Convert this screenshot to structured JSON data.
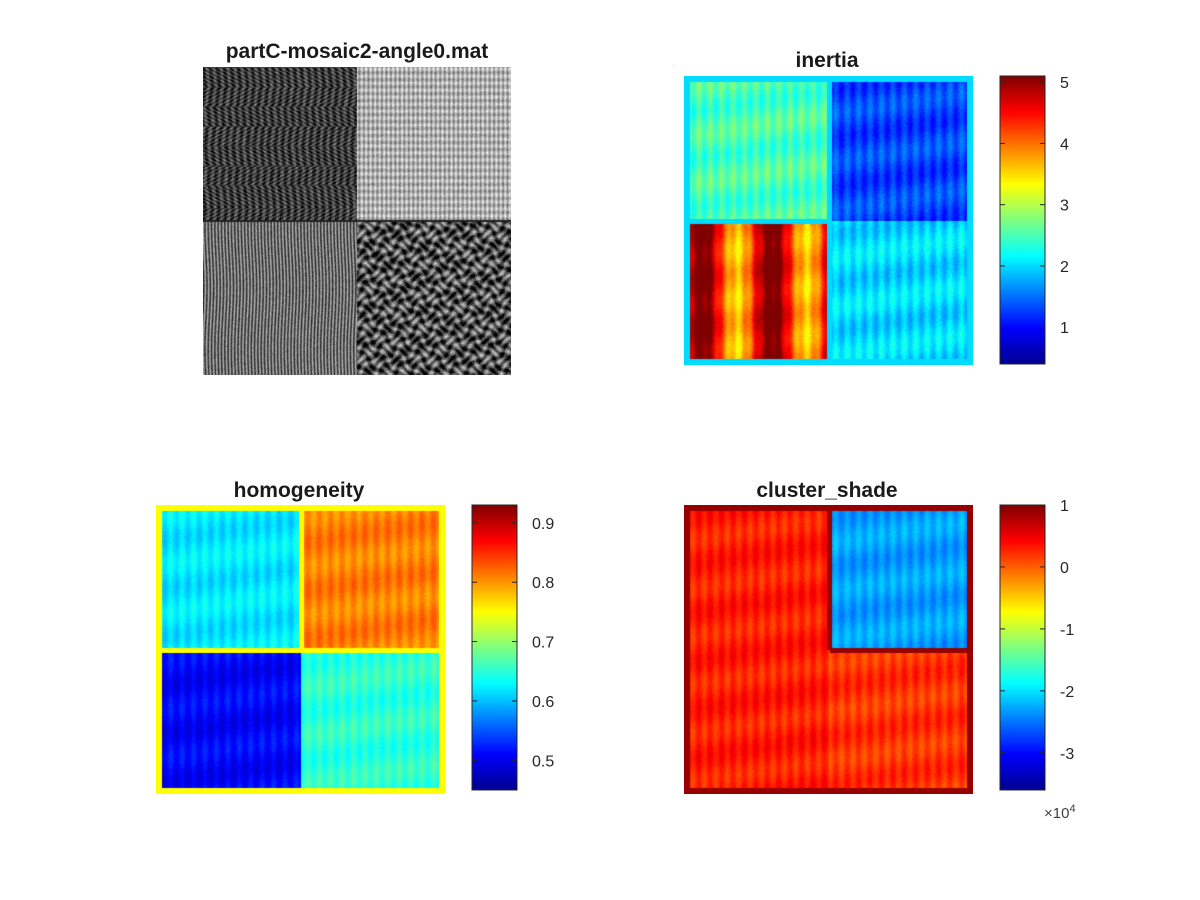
{
  "figure": {
    "panels": [
      {
        "id": "image",
        "title": "partC-mosaic2-angle0.mat",
        "kind": "grayscale-image"
      },
      {
        "id": "inertia",
        "title": "inertia",
        "kind": "heatmap"
      },
      {
        "id": "homogeneity",
        "title": "homogeneity",
        "kind": "heatmap"
      },
      {
        "id": "cluster_shade",
        "title": "cluster_shade",
        "kind": "heatmap"
      }
    ],
    "colormap": "jet",
    "cluster_shade_exponent": {
      "prefix": "×10",
      "power": "4"
    }
  },
  "chart_data": [
    {
      "type": "heatmap",
      "title": "partC-mosaic2-angle0.mat",
      "colormap": "gray",
      "quadrants": {
        "top_left": "woven herringbone (dark)",
        "top_right": "woven fabric (light)",
        "bottom_left": "vertical streaks",
        "bottom_right": "pebble texture"
      }
    },
    {
      "type": "heatmap",
      "title": "inertia",
      "colorbar": {
        "ticks": [
          1,
          2,
          3,
          4,
          5
        ],
        "range": [
          0.4,
          5.1
        ]
      },
      "quadrant_values": {
        "top_left": 2.5,
        "top_right": 1.3,
        "bottom_left": 4.4,
        "bottom_right": 2.0,
        "border": 2.0
      }
    },
    {
      "type": "heatmap",
      "title": "homogeneity",
      "colorbar": {
        "ticks": [
          0.5,
          0.6,
          0.7,
          0.8,
          0.9
        ],
        "range": [
          0.45,
          0.93
        ]
      },
      "quadrant_values": {
        "top_left": 0.62,
        "top_right": 0.81,
        "bottom_left": 0.51,
        "bottom_right": 0.65,
        "border": 0.75
      }
    },
    {
      "type": "heatmap",
      "title": "cluster_shade",
      "colorbar": {
        "ticks": [
          -3,
          -2,
          -1,
          0,
          1
        ],
        "range": [
          -3.6,
          1.0
        ],
        "multiplier": 10000
      },
      "quadrant_values": {
        "top_left": 0.3,
        "top_right": -2.3,
        "bottom_left": 0.3,
        "bottom_right": 0.2,
        "border": 0.9
      }
    }
  ]
}
